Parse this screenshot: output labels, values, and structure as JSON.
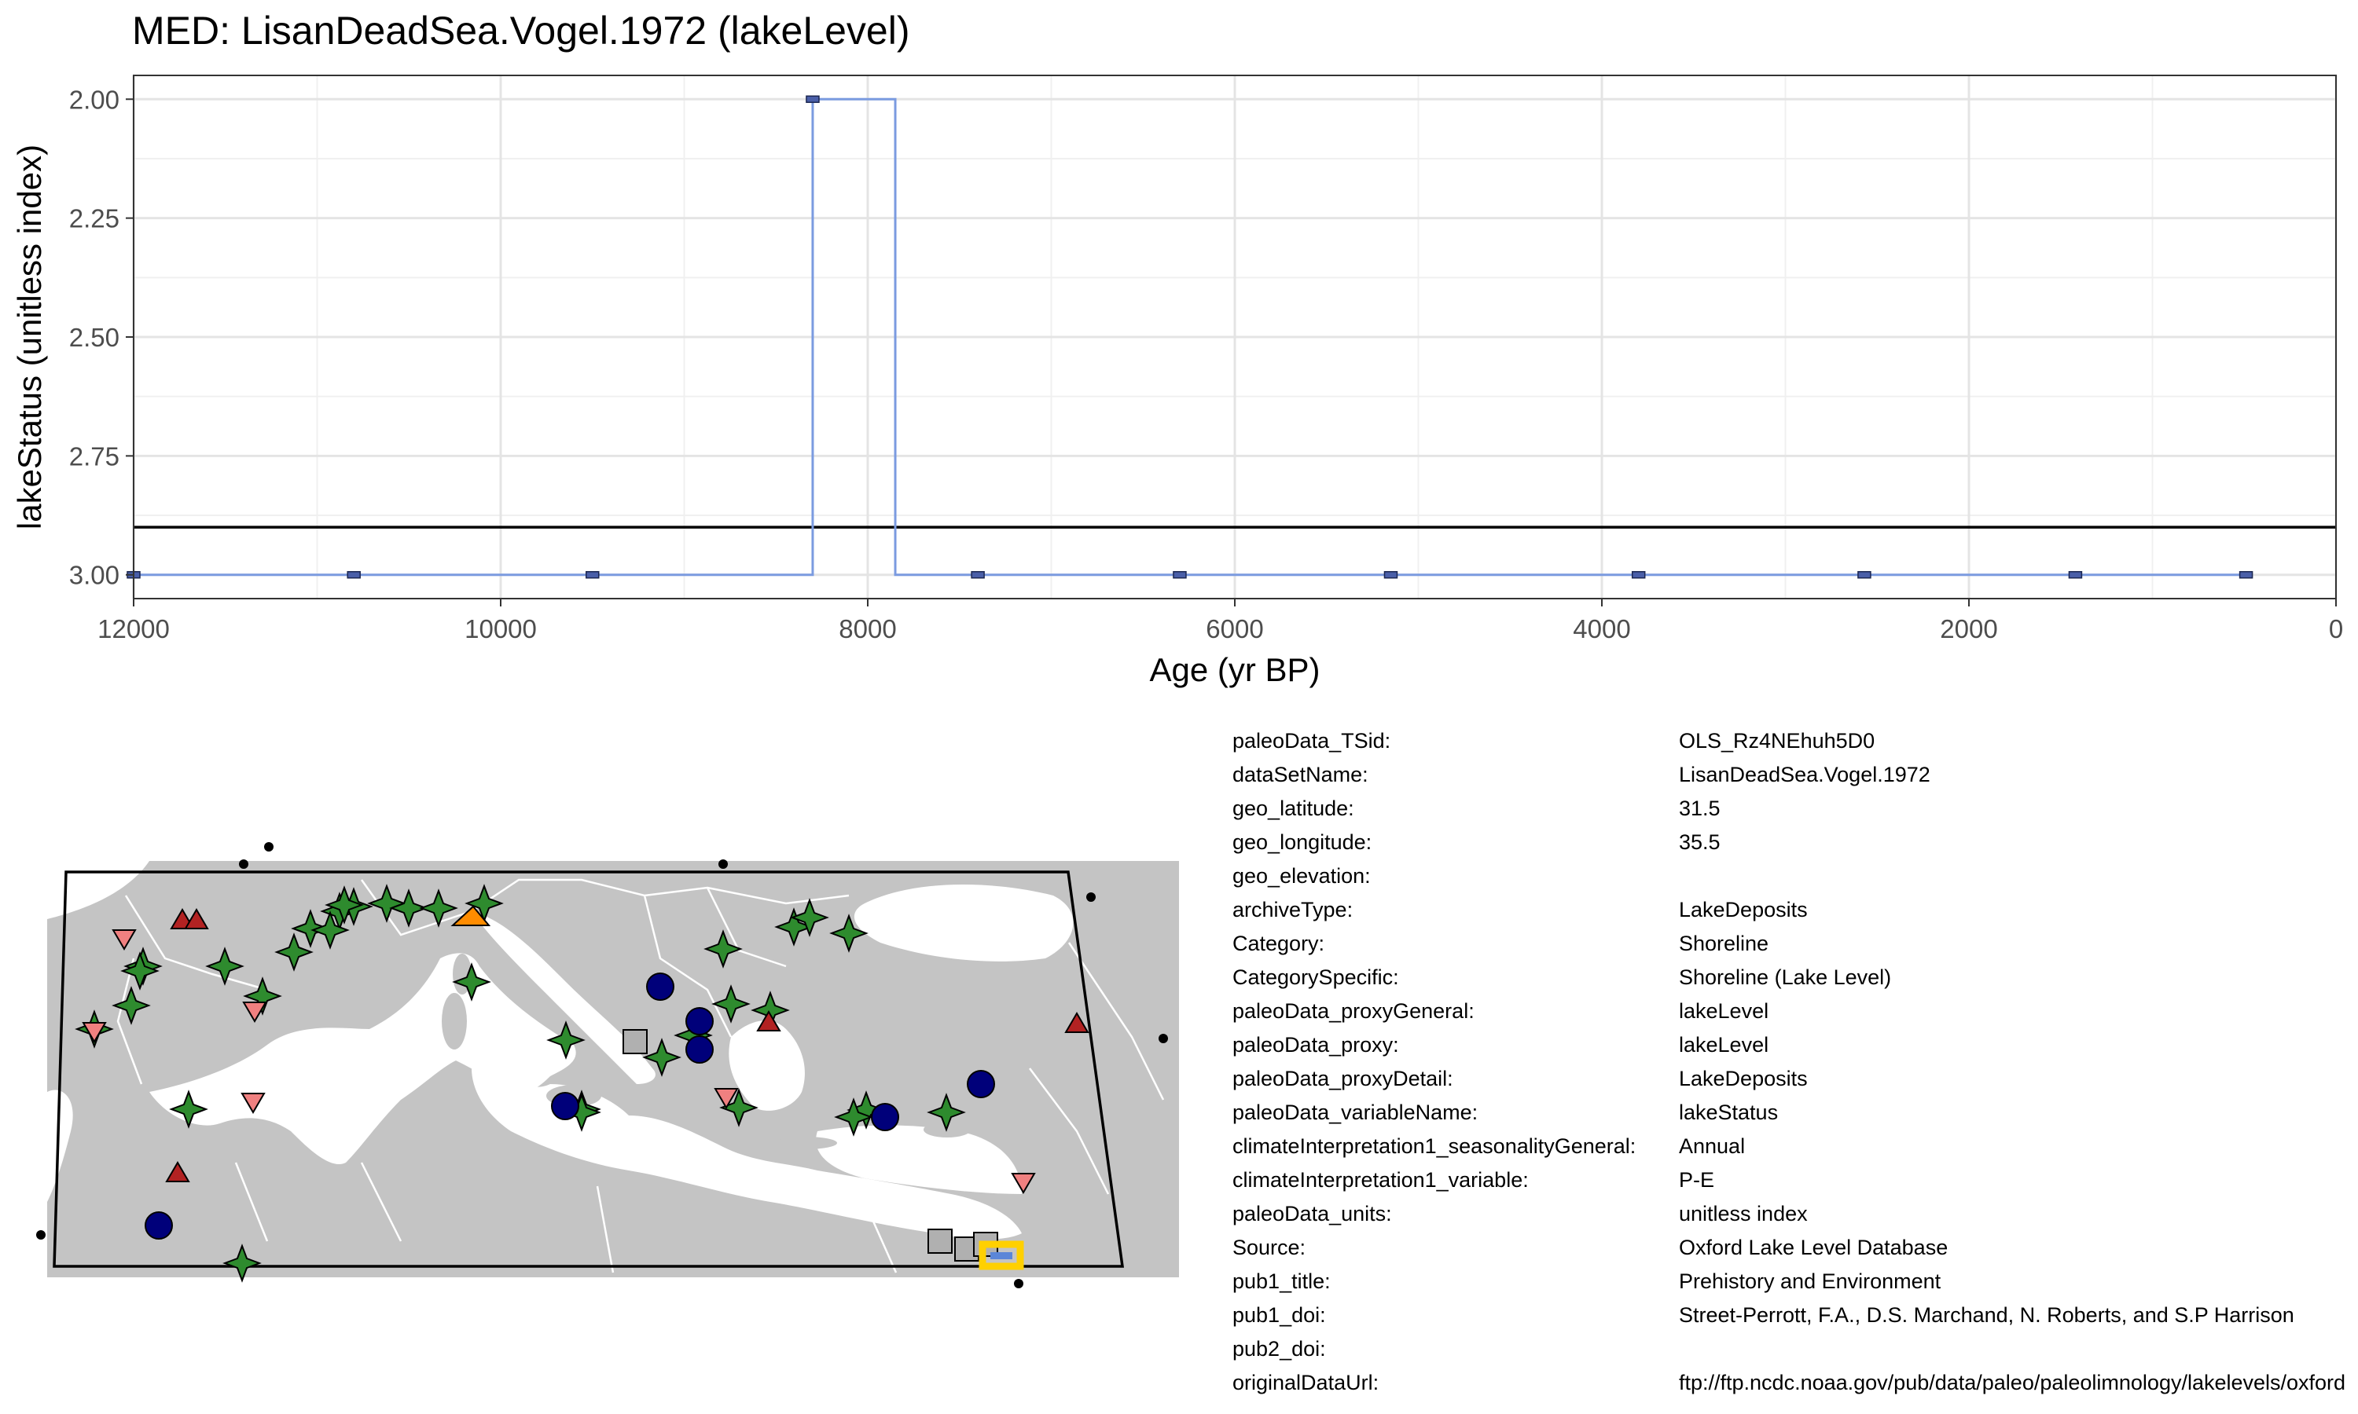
{
  "title": "MED: LisanDeadSea.Vogel.1972 (lakeLevel)",
  "chart_data": {
    "type": "line",
    "xlabel": "Age (yr BP)",
    "ylabel": "lakeStatus (unitless index)",
    "xlim": [
      12000,
      0
    ],
    "ylim": [
      2.0,
      3.0
    ],
    "y_reversed": true,
    "x_ticks": [
      12000,
      10000,
      8000,
      6000,
      4000,
      2000,
      0
    ],
    "y_ticks": [
      2.0,
      2.25,
      2.5,
      2.75,
      3.0
    ],
    "y_tick_labels": [
      "2.00",
      "2.25",
      "2.50",
      "2.75",
      "3.00"
    ],
    "grid": true,
    "series": [
      {
        "step": true,
        "color": "#7b9be0",
        "x": [
          12000,
          10800,
          9500,
          8900,
          8300,
          7850,
          7400,
          6300,
          5150,
          3800,
          2570,
          1420,
          490
        ],
        "y": [
          3,
          3,
          3,
          3,
          2,
          3,
          3,
          3,
          3,
          3,
          3,
          3,
          3
        ]
      }
    ],
    "markers_x": [
      12000,
      10800,
      9500,
      8300,
      7400,
      6300,
      5150,
      3800,
      2570,
      1420,
      490
    ],
    "reference_line": {
      "y": 2.9,
      "color": "#000000"
    }
  },
  "map": {
    "land_color": "#c4c4c4",
    "border_color": "#ffffff",
    "outline_color": "#000000",
    "site_types": {
      "green-star": "#2e8b2e",
      "red-triangle": "#b22222",
      "pink-down-triangle": "#f08080",
      "navy-circle": "#00007a",
      "gray-square": "#b0b0b0",
      "orange-flag": "#ff8c00",
      "highlight": "#ffd000",
      "highlight-inner": "#5b86d8"
    }
  },
  "metadata": [
    {
      "key": "paleoData_TSid:",
      "value": "OLS_Rz4NEhuh5D0"
    },
    {
      "key": "dataSetName:",
      "value": "LisanDeadSea.Vogel.1972"
    },
    {
      "key": "geo_latitude:",
      "value": "31.5"
    },
    {
      "key": "geo_longitude:",
      "value": "35.5"
    },
    {
      "key": "geo_elevation:",
      "value": ""
    },
    {
      "key": "archiveType:",
      "value": "LakeDeposits"
    },
    {
      "key": "Category:",
      "value": "Shoreline"
    },
    {
      "key": "CategorySpecific:",
      "value": "Shoreline (Lake Level)"
    },
    {
      "key": "paleoData_proxyGeneral:",
      "value": "lakeLevel"
    },
    {
      "key": "paleoData_proxy:",
      "value": "lakeLevel"
    },
    {
      "key": "paleoData_proxyDetail:",
      "value": "LakeDeposits"
    },
    {
      "key": "paleoData_variableName:",
      "value": "lakeStatus"
    },
    {
      "key": "climateInterpretation1_seasonalityGeneral:",
      "value": "Annual"
    },
    {
      "key": "climateInterpretation1_variable:",
      "value": "P-E"
    },
    {
      "key": "paleoData_units:",
      "value": "unitless index"
    },
    {
      "key": "Source:",
      "value": "Oxford Lake Level Database"
    },
    {
      "key": "pub1_title:",
      "value": "Prehistory and Environment"
    },
    {
      "key": "pub1_doi:",
      "value": "Street-Perrott, F.A., D.S. Marchand, N. Roberts, and S.P Harrison"
    },
    {
      "key": "pub2_doi:",
      "value": ""
    },
    {
      "key": "originalDataUrl:",
      "value": "ftp://ftp.ncdc.noaa.gov/pub/data/paleo/paleolimnology/lakelevels/oxford"
    }
  ]
}
